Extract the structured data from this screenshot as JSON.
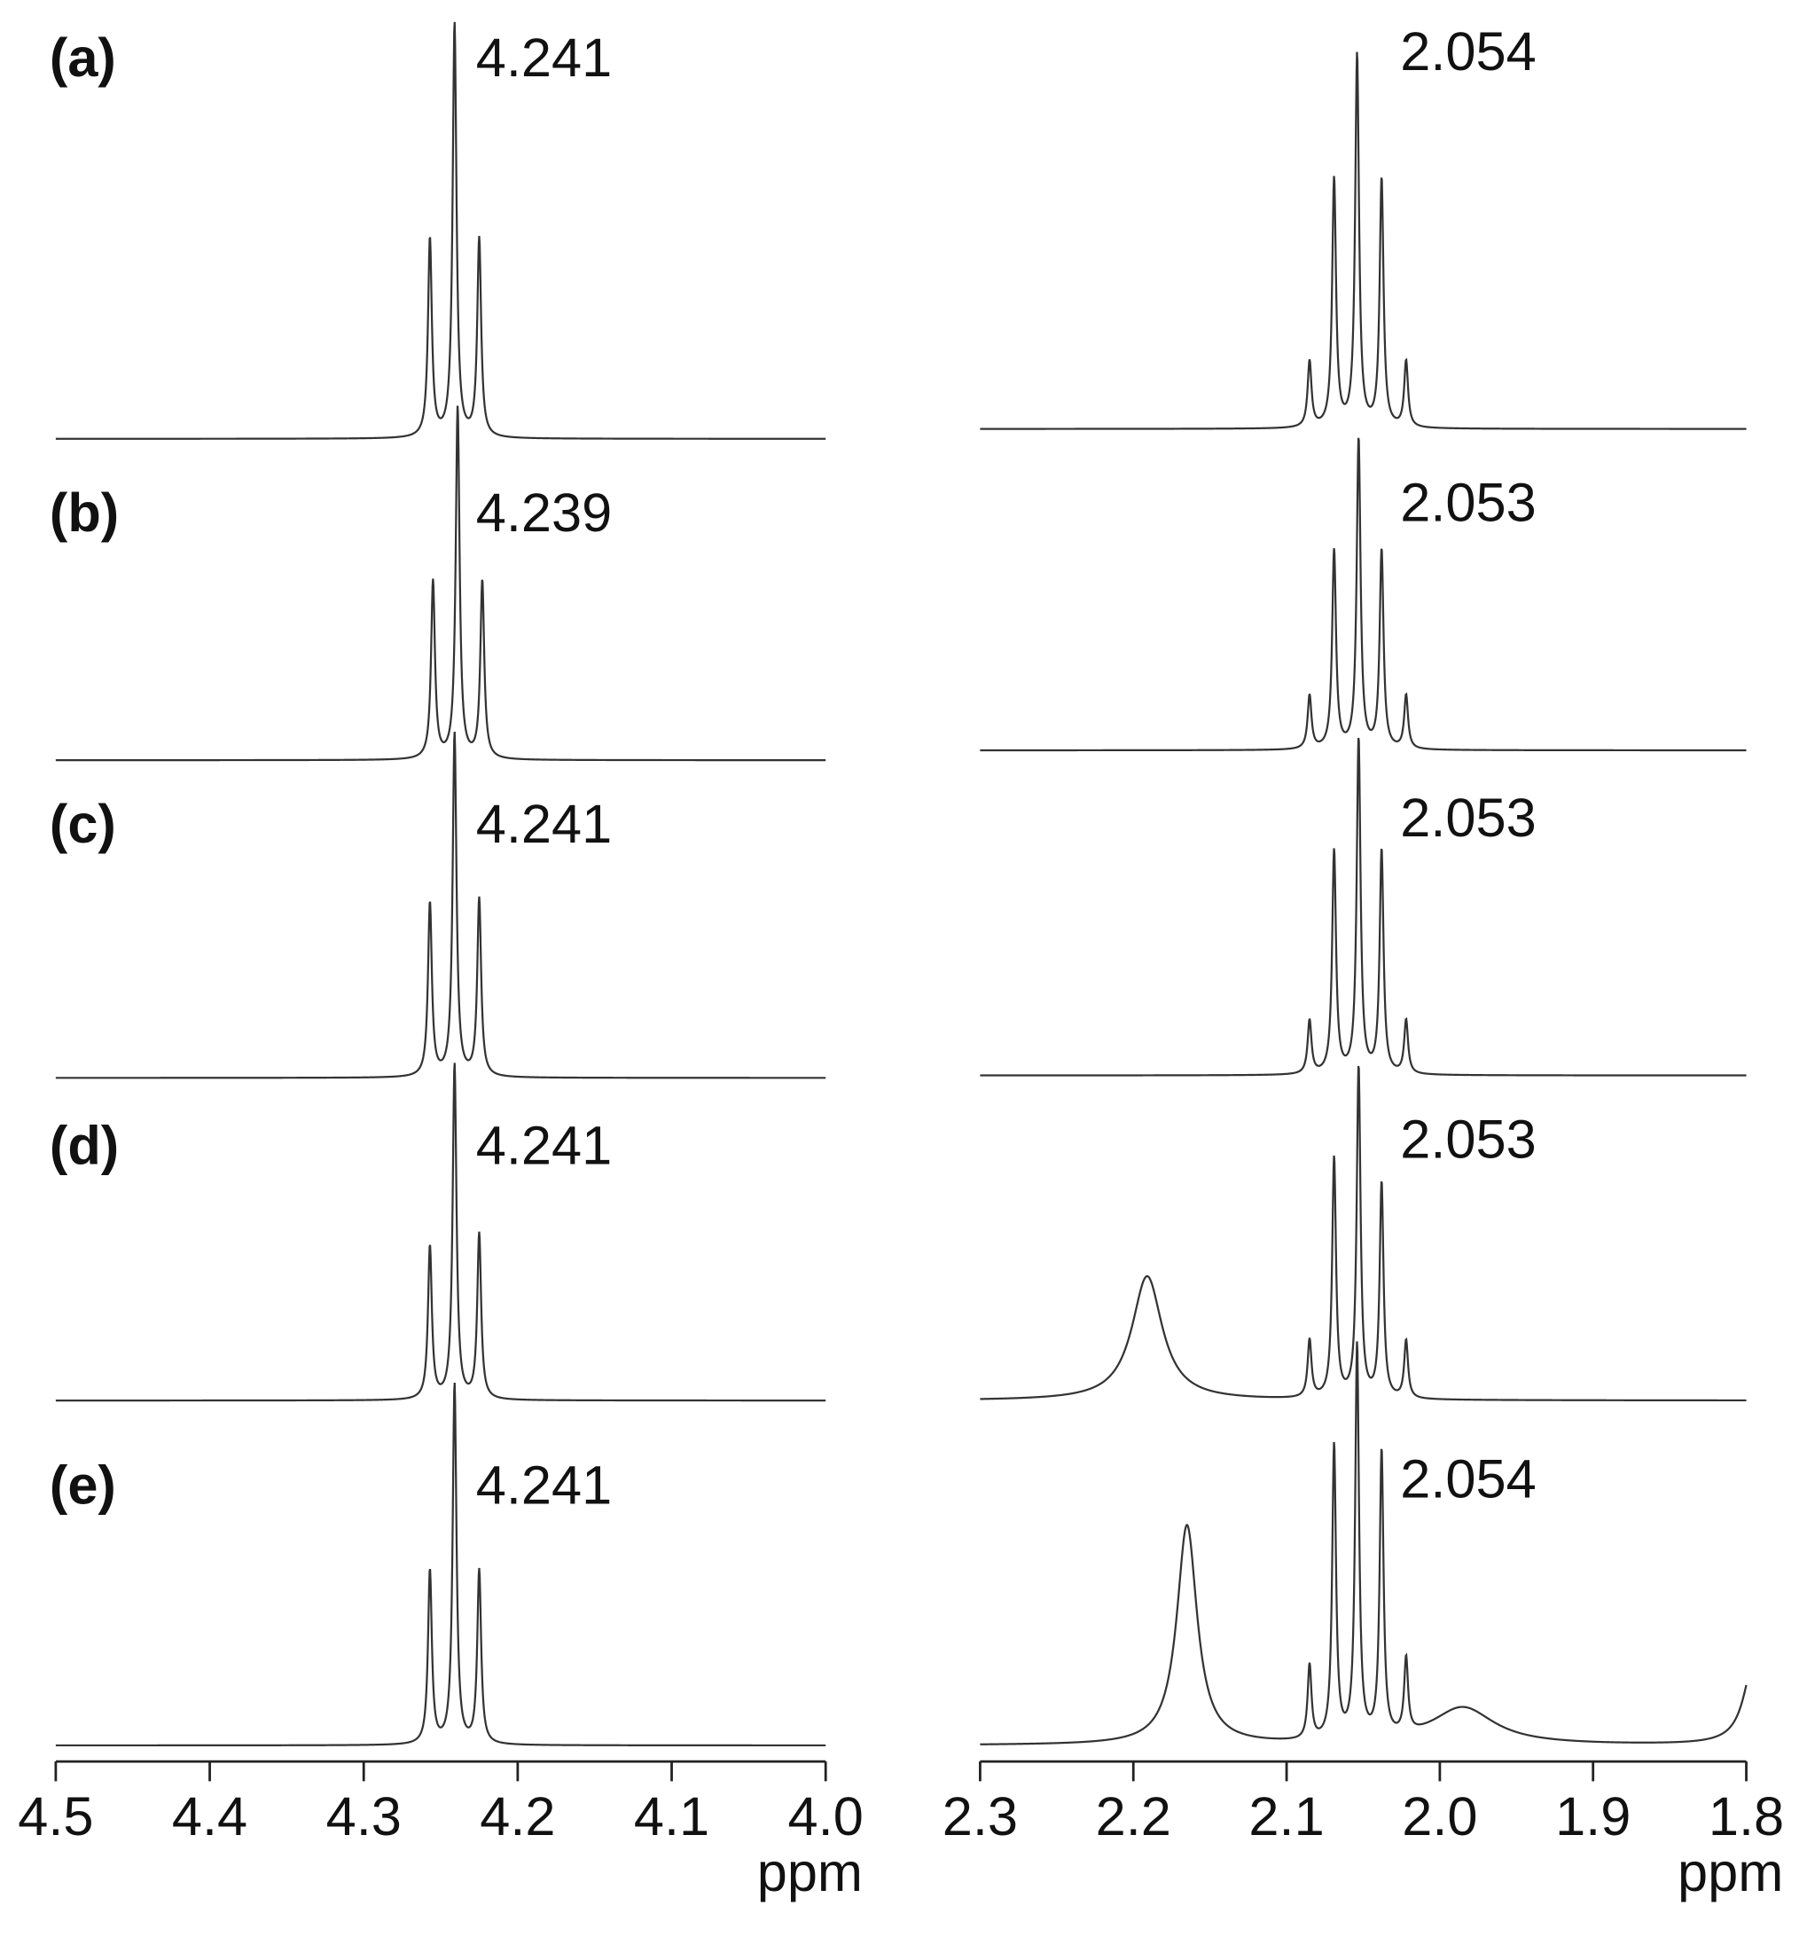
{
  "chart_data": [
    {
      "type": "nmr",
      "xlim": [
        4.5,
        4.0
      ],
      "xticks": [
        4.5,
        4.4,
        4.3,
        4.2,
        4.1,
        {
          "value": 4,
          "label": "4.0"
        }
      ],
      "xlabel": "ppm",
      "color": "#333333",
      "series": [
        {
          "name": "(a)",
          "shift": 4.241,
          "peaks": [
            {
              "x": 4.257,
              "height": 48,
              "width": 0.0015
            },
            {
              "x": 4.241,
              "height": 100,
              "width": 0.0015
            },
            {
              "x": 4.225,
              "height": 48,
              "width": 0.0015
            }
          ]
        },
        {
          "name": "(b)",
          "shift": 4.239,
          "peaks": [
            {
              "x": 4.255,
              "height": 43,
              "width": 0.0015
            },
            {
              "x": 4.239,
              "height": 85,
              "width": 0.0015
            },
            {
              "x": 4.223,
              "height": 43,
              "width": 0.0015
            }
          ]
        },
        {
          "name": "(c)",
          "shift": 4.241,
          "peaks": [
            {
              "x": 4.257,
              "height": 42,
              "width": 0.0015
            },
            {
              "x": 4.241,
              "height": 83,
              "width": 0.0015
            },
            {
              "x": 4.225,
              "height": 43,
              "width": 0.0015
            }
          ]
        },
        {
          "name": "(d)",
          "shift": 4.241,
          "peaks": [
            {
              "x": 4.257,
              "height": 37,
              "width": 0.0015
            },
            {
              "x": 4.241,
              "height": 81,
              "width": 0.0015
            },
            {
              "x": 4.225,
              "height": 40,
              "width": 0.0015
            }
          ]
        },
        {
          "name": "(e)",
          "shift": 4.241,
          "peaks": [
            {
              "x": 4.257,
              "height": 42,
              "width": 0.0015
            },
            {
              "x": 4.241,
              "height": 87,
              "width": 0.0015
            },
            {
              "x": 4.225,
              "height": 42,
              "width": 0.0015
            }
          ]
        }
      ]
    },
    {
      "type": "nmr",
      "xlim": [
        2.3,
        1.8
      ],
      "xticks": [
        2.3,
        2.2,
        2.1,
        {
          "value": 2,
          "label": "2.0"
        },
        1.9,
        1.8
      ],
      "xlabel": "ppm",
      "color": "#333333",
      "series": [
        {
          "shift": 2.054,
          "peaks": [
            {
              "x": 2.085,
              "height": 16,
              "width": 0.0015
            },
            {
              "x": 2.069,
              "height": 60,
              "width": 0.0015
            },
            {
              "x": 2.054,
              "height": 90,
              "width": 0.0015
            },
            {
              "x": 2.038,
              "height": 60,
              "width": 0.0015
            },
            {
              "x": 2.022,
              "height": 16,
              "width": 0.0015
            }
          ]
        },
        {
          "shift": 2.053,
          "peaks": [
            {
              "x": 2.085,
              "height": 13,
              "width": 0.0015
            },
            {
              "x": 2.069,
              "height": 48,
              "width": 0.0015
            },
            {
              "x": 2.053,
              "height": 75,
              "width": 0.0015
            },
            {
              "x": 2.038,
              "height": 48,
              "width": 0.0015
            },
            {
              "x": 2.022,
              "height": 13,
              "width": 0.0015
            }
          ]
        },
        {
          "shift": 2.053,
          "peaks": [
            {
              "x": 2.085,
              "height": 13,
              "width": 0.0015
            },
            {
              "x": 2.069,
              "height": 54,
              "width": 0.0015
            },
            {
              "x": 2.053,
              "height": 81,
              "width": 0.0015
            },
            {
              "x": 2.038,
              "height": 54,
              "width": 0.0015
            },
            {
              "x": 2.022,
              "height": 13,
              "width": 0.0015
            }
          ]
        },
        {
          "shift": 2.053,
          "peaks": [
            {
              "x": 2.191,
              "height": 30,
              "width": 0.012
            },
            {
              "x": 2.085,
              "height": 14,
              "width": 0.0015
            },
            {
              "x": 2.069,
              "height": 58,
              "width": 0.0015
            },
            {
              "x": 2.053,
              "height": 80,
              "width": 0.0015
            },
            {
              "x": 2.038,
              "height": 52,
              "width": 0.0015
            },
            {
              "x": 2.022,
              "height": 14,
              "width": 0.0015
            }
          ]
        },
        {
          "shift": 2.054,
          "peaks": [
            {
              "x": 2.165,
              "height": 53,
              "width": 0.008
            },
            {
              "x": 2.085,
              "height": 18,
              "width": 0.0015
            },
            {
              "x": 2.069,
              "height": 71,
              "width": 0.0015
            },
            {
              "x": 2.054,
              "height": 95,
              "width": 0.0015
            },
            {
              "x": 2.038,
              "height": 69,
              "width": 0.0015
            },
            {
              "x": 2.022,
              "height": 18,
              "width": 0.0015
            },
            {
              "x": 1.985,
              "height": 9,
              "width": 0.025
            },
            {
              "x": 1.795,
              "height": 20,
              "width": 0.008
            }
          ]
        }
      ]
    }
  ]
}
